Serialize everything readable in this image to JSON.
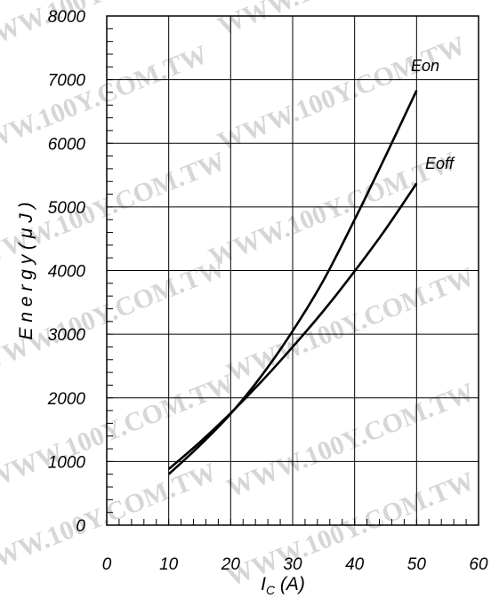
{
  "watermark_text": "WWW.100Y.COM.TW",
  "chart_data": {
    "type": "line",
    "xlabel_main": "I",
    "xlabel_sub": "C",
    "xlabel_unit": " (A)",
    "ylabel": "E n e r g y  ( μ J )",
    "xlim": [
      0,
      60
    ],
    "ylim": [
      0,
      8000
    ],
    "x_ticks": [
      0,
      10,
      20,
      30,
      40,
      50,
      60
    ],
    "y_ticks": [
      0,
      1000,
      2000,
      3000,
      4000,
      5000,
      6000,
      7000,
      8000
    ],
    "x_tick_labels": [
      "0",
      "10",
      "20",
      "30",
      "40",
      "50",
      "60"
    ],
    "y_tick_labels": [
      "0",
      "1000",
      "2000",
      "3000",
      "4000",
      "5000",
      "6000",
      "7000",
      "8000"
    ],
    "x_minor_step": 2,
    "y_minor_step": 200,
    "grid": true,
    "series": [
      {
        "name": "Eon",
        "x": [
          10,
          15,
          20,
          25,
          30,
          35,
          40,
          45,
          50
        ],
        "values": [
          800,
          1250,
          1750,
          2350,
          3050,
          3850,
          4800,
          5800,
          6830
        ]
      },
      {
        "name": "Eoff",
        "x": [
          10,
          15,
          20,
          25,
          30,
          35,
          40,
          45,
          50
        ],
        "values": [
          880,
          1300,
          1760,
          2260,
          2800,
          3370,
          3990,
          4650,
          5370
        ]
      }
    ]
  }
}
